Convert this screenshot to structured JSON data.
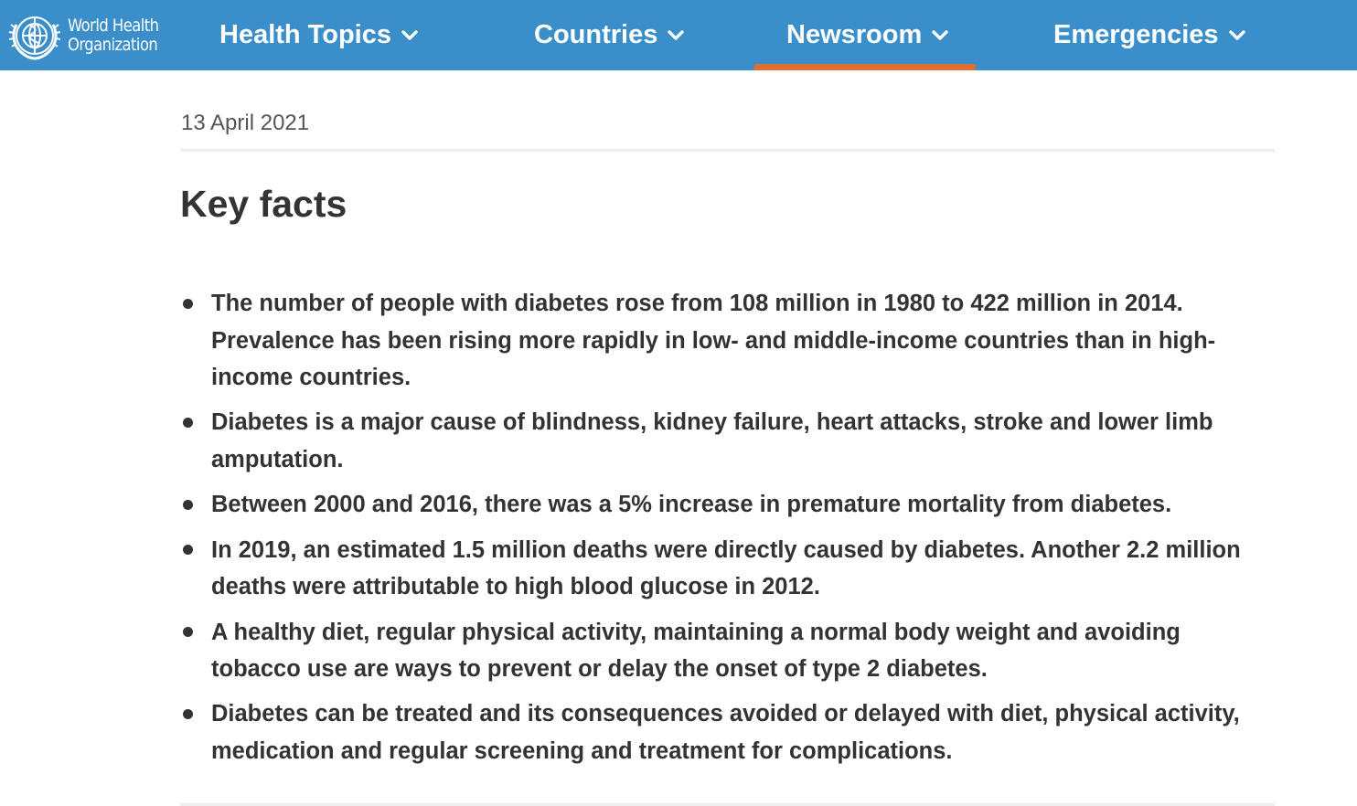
{
  "header": {
    "logo_line1": "World Health",
    "logo_line2": "Organization",
    "logo_icon": "who-emblem-icon",
    "nav": [
      {
        "label": "Health Topics",
        "icon": "chevron-down-icon",
        "active": false
      },
      {
        "label": "Countries",
        "icon": "chevron-down-icon",
        "active": false
      },
      {
        "label": "Newsroom",
        "icon": "chevron-down-icon",
        "active": true
      },
      {
        "label": "Emergencies",
        "icon": "chevron-down-icon",
        "active": false
      }
    ],
    "colors": {
      "background": "#3a8ec9",
      "active_underline": "#e06c30",
      "text": "#ffffff"
    }
  },
  "article": {
    "date": "13 April 2021",
    "heading": "Key facts",
    "facts": [
      "The number of people with diabetes rose from 108 million in 1980 to 422 million in 2014. Prevalence has been rising more rapidly in low- and middle-income countries than in high-income countries.",
      "Diabetes is a major cause of blindness, kidney failure, heart attacks, stroke and lower limb amputation.",
      "Between 2000 and 2016, there was a 5% increase in premature mortality from diabetes.",
      "In 2019, an estimated 1.5 million deaths were directly caused by diabetes. Another 2.2 million deaths were attributable to high blood glucose in 2012.",
      "A healthy diet, regular physical activity, maintaining a normal body weight and avoiding tobacco use are ways to prevent or delay the onset of type 2 diabetes.",
      "Diabetes can be treated and its consequences avoided or delayed with diet, physical activity, medication and regular screening and treatment for complications."
    ],
    "colors": {
      "text": "#333333",
      "date": "#555555"
    }
  }
}
